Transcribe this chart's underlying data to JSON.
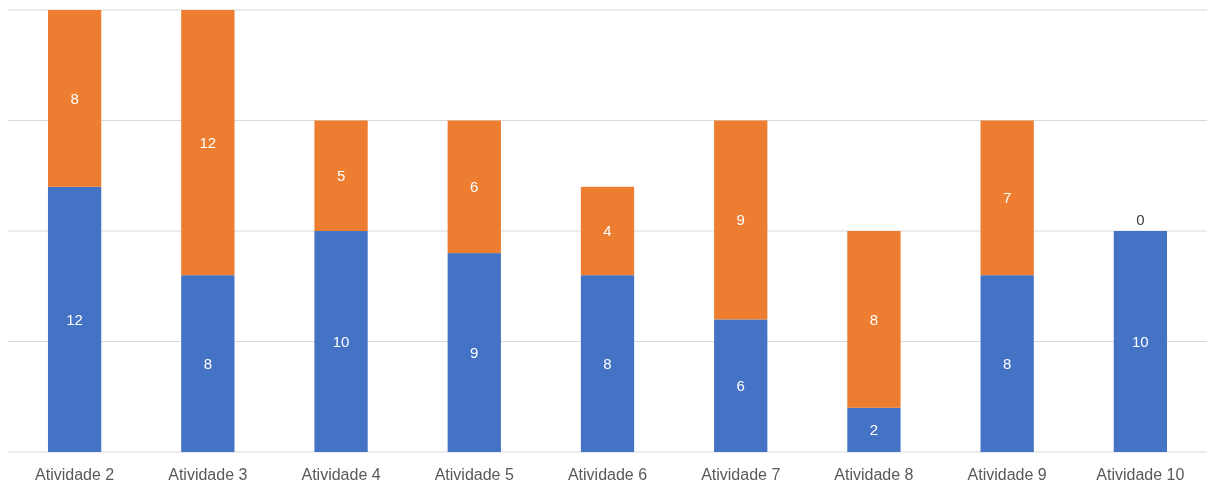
{
  "chart_data": {
    "type": "bar",
    "stacked": true,
    "categories": [
      "Atividade 2",
      "Atividade 3",
      "Atividade 4",
      "Atividade 5",
      "Atividade 6",
      "Atividade 7",
      "Atividade 8",
      "Atividade 9",
      "Atividade 10"
    ],
    "series": [
      {
        "color": "#4472c4",
        "values": [
          12,
          8,
          10,
          9,
          8,
          6,
          2,
          8,
          10
        ]
      },
      {
        "color": "#ed7d31",
        "values": [
          8,
          12,
          5,
          6,
          4,
          9,
          8,
          7,
          0
        ]
      }
    ],
    "ylim": [
      0,
      20
    ],
    "yticks": [
      {
        "value": 0,
        "label": null
      },
      {
        "value": 5,
        "label": null
      },
      {
        "value": 10,
        "label": null
      },
      {
        "value": 15,
        "label": null
      },
      {
        "value": 20,
        "label": null
      }
    ],
    "tick_labels": "x",
    "grid": "y",
    "data_labels": true
  }
}
